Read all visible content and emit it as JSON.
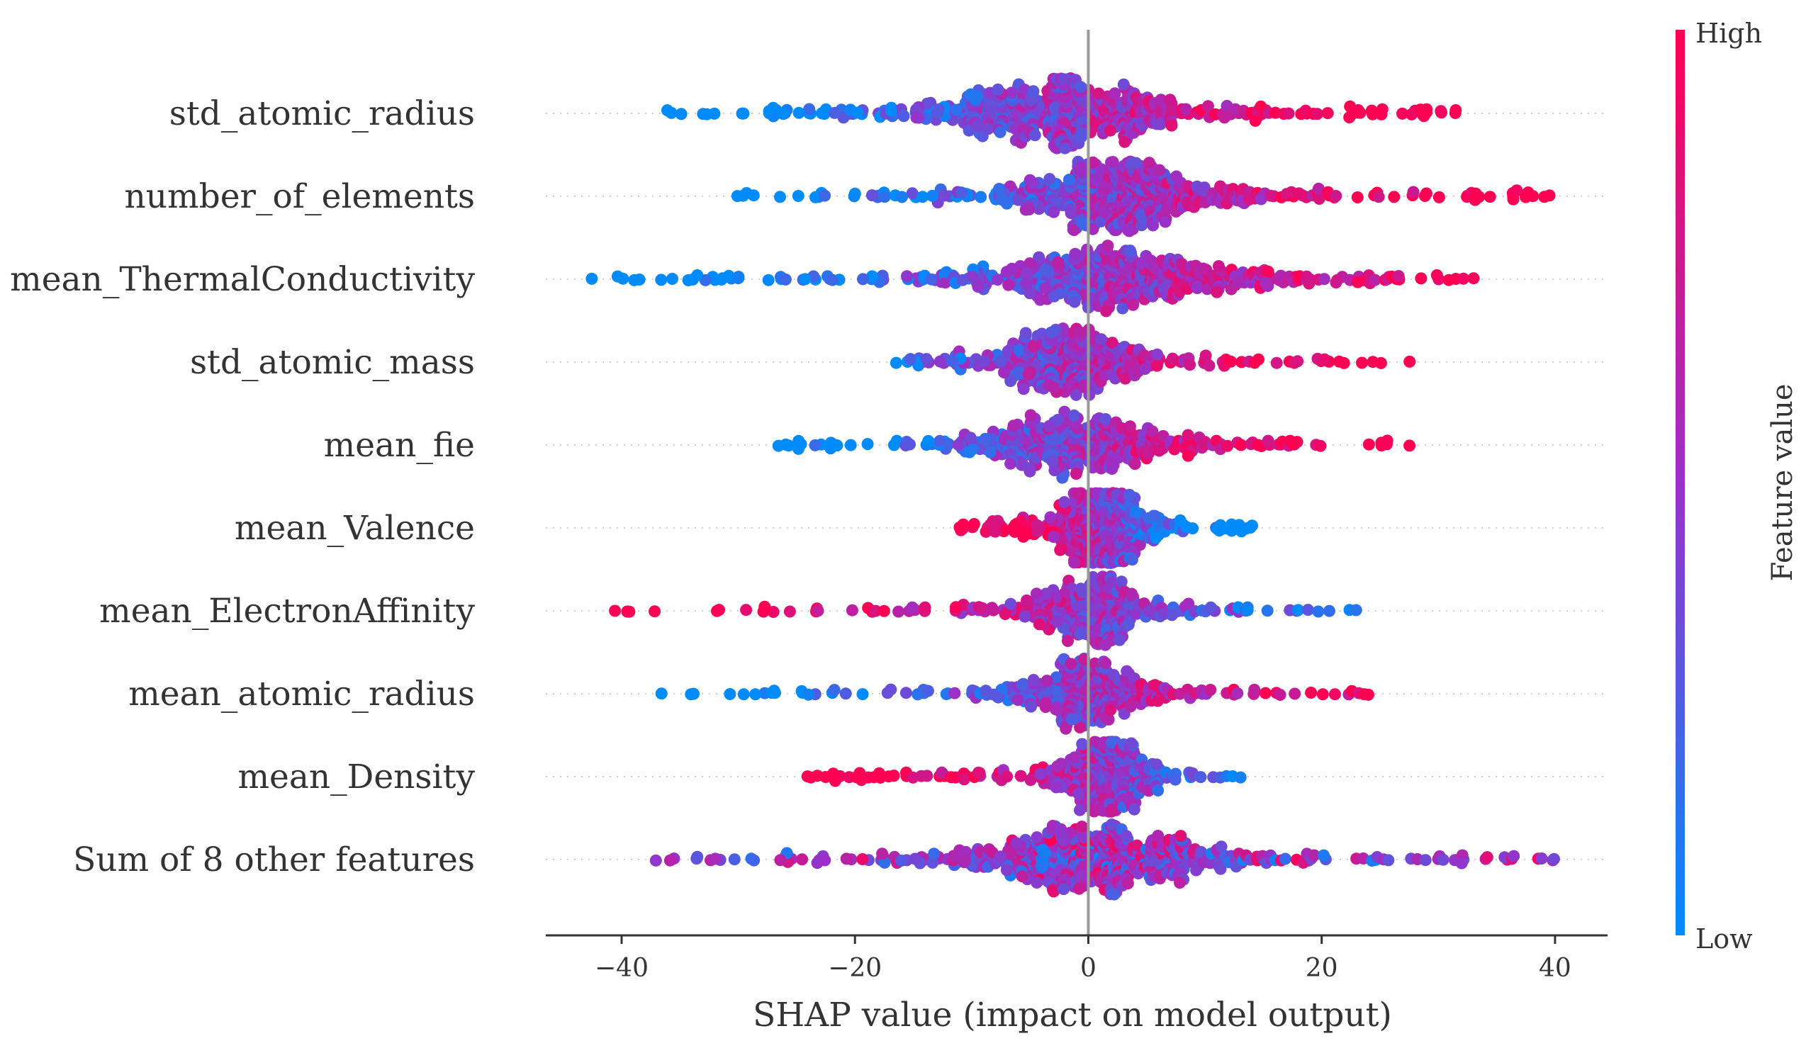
{
  "chart_data": {
    "type": "scatter",
    "subtype": "shap-beeswarm",
    "xlabel": "SHAP value (impact on model output)",
    "xlim": [
      -46.5,
      44.5
    ],
    "xticks": [
      -40,
      -20,
      0,
      20,
      40
    ],
    "xtick_labels": [
      "−40",
      "−20",
      "0",
      "20",
      "40"
    ],
    "grid": false,
    "colorbar": {
      "title": "Feature value",
      "high_label": "High",
      "low_label": "Low",
      "high_color": "#ff0052",
      "low_color": "#008bfb",
      "mid_color": "#9b30c8"
    },
    "features": [
      {
        "name": "std_atomic_radius",
        "min": -36,
        "max": 31.5,
        "peak": -2,
        "spread": 13,
        "density": 0.9,
        "low_side": "left",
        "mode_shift": 0.45
      },
      {
        "name": "number_of_elements",
        "min": -30,
        "max": 39.5,
        "peak": 3,
        "spread": 12,
        "density": 0.85,
        "low_side": "left",
        "mode_shift": 0.35
      },
      {
        "name": "mean_ThermalConductivity",
        "min": -42.5,
        "max": 33,
        "peak": 2,
        "spread": 13,
        "density": 0.85,
        "low_side": "left",
        "mode_shift": 0.3
      },
      {
        "name": "std_atomic_mass",
        "min": -16.5,
        "max": 27.5,
        "peak": -2,
        "spread": 8,
        "density": 0.6,
        "low_side": "left",
        "mode_shift": 0.25
      },
      {
        "name": "mean_fie",
        "min": -26.5,
        "max": 27.5,
        "peak": -1,
        "spread": 9,
        "density": 0.65,
        "low_side": "left",
        "mode_shift": 0.2
      },
      {
        "name": "mean_Valence",
        "min": -11,
        "max": 14,
        "peak": 1,
        "spread": 5,
        "density": 0.65,
        "low_side": "right",
        "mode_shift": 0.2
      },
      {
        "name": "mean_ElectronAffinity",
        "min": -40.5,
        "max": 23,
        "peak": 0,
        "spread": 7,
        "density": 0.55,
        "low_side": "right",
        "mode_shift": 0.1
      },
      {
        "name": "mean_atomic_radius",
        "min": -36.5,
        "max": 24,
        "peak": 0,
        "spread": 7,
        "density": 0.55,
        "low_side": "left",
        "mode_shift": 0.1
      },
      {
        "name": "mean_Density",
        "min": -24,
        "max": 13,
        "peak": 1.5,
        "spread": 5,
        "density": 0.55,
        "low_side": "right",
        "mode_shift": 0.1
      },
      {
        "name": "Sum of 8 other features",
        "min": -37,
        "max": 40,
        "peak": 0.5,
        "spread": 13,
        "density": 0.9,
        "low_side": "mixed",
        "mode_shift": 0
      }
    ]
  }
}
